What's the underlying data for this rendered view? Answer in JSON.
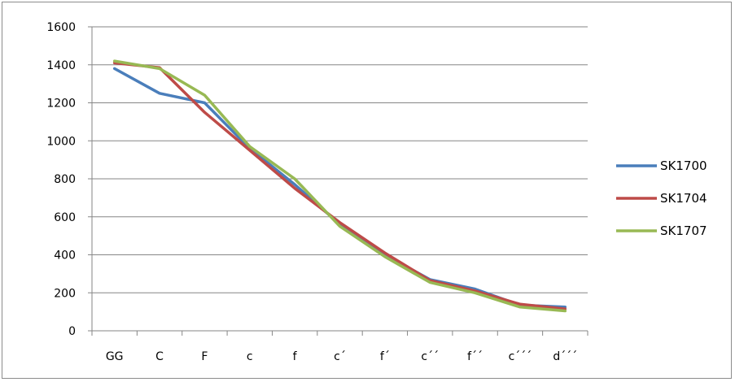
{
  "chart_data": {
    "type": "line",
    "title": "",
    "xlabel": "",
    "ylabel": "",
    "categories": [
      "GG",
      "C",
      "F",
      "c",
      "f",
      "c'",
      "f'",
      "c''",
      "f''",
      "c'''",
      "d'''"
    ],
    "categories_display": [
      "GG",
      "C",
      "F",
      "c",
      "f",
      "c´",
      "f´",
      "c´´",
      "f´´",
      "c´´´",
      "d´´´"
    ],
    "ylim": [
      0,
      1600
    ],
    "yticks": [
      0,
      200,
      400,
      600,
      800,
      1000,
      1200,
      1400,
      1600
    ],
    "grid": "horizontal",
    "legend_position": "right",
    "series": [
      {
        "name": "SK1700",
        "color": "#4a7ebb",
        "values": [
          1380,
          1250,
          1200,
          960,
          770,
          560,
          400,
          270,
          220,
          135,
          125
        ]
      },
      {
        "name": "SK1704",
        "color": "#be4b48",
        "values": [
          1410,
          1385,
          1150,
          950,
          750,
          570,
          410,
          265,
          210,
          140,
          115
        ]
      },
      {
        "name": "SK1707",
        "color": "#98b954",
        "values": [
          1420,
          1380,
          1240,
          970,
          800,
          550,
          390,
          255,
          200,
          125,
          105
        ]
      }
    ]
  }
}
